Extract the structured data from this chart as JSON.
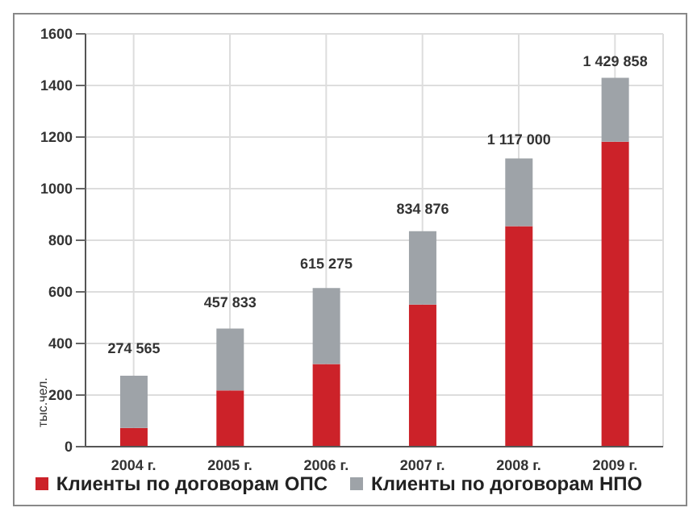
{
  "chart_data": {
    "type": "bar",
    "stacked": true,
    "ylabel": "тыс.чел.",
    "categories": [
      "2004 г.",
      "2005 г.",
      "2006 г.",
      "2007 г.",
      "2008 г.",
      "2009 г."
    ],
    "series": [
      {
        "name": "Клиенты по договорам ОПС",
        "color": "#cc2229",
        "values": [
          73,
          218,
          320,
          551,
          855,
          1182
        ]
      },
      {
        "name": "Клиенты по договорам НПО",
        "color": "#9ea3a8",
        "values": [
          202,
          240,
          295,
          284,
          262,
          248
        ]
      }
    ],
    "annotations": [
      {
        "text": "274 565",
        "x": "2004 г.",
        "y": 274.565
      },
      {
        "text": "457 833",
        "x": "2005 г.",
        "y": 457.833
      },
      {
        "text": "615 275",
        "x": "2006 г.",
        "y": 615.275
      },
      {
        "text": "834 876",
        "x": "2007 г.",
        "y": 834.876
      },
      {
        "text": "1 117 000",
        "x": "2008 г.",
        "y": 1117
      },
      {
        "text": "1 429 858",
        "x": "2009 г.",
        "y": 1429.858
      }
    ],
    "ylim": [
      0,
      1600
    ],
    "yticks": [
      0,
      200,
      400,
      600,
      800,
      1000,
      1200,
      1400,
      1600
    ],
    "grid": true,
    "legend": "bottom"
  }
}
